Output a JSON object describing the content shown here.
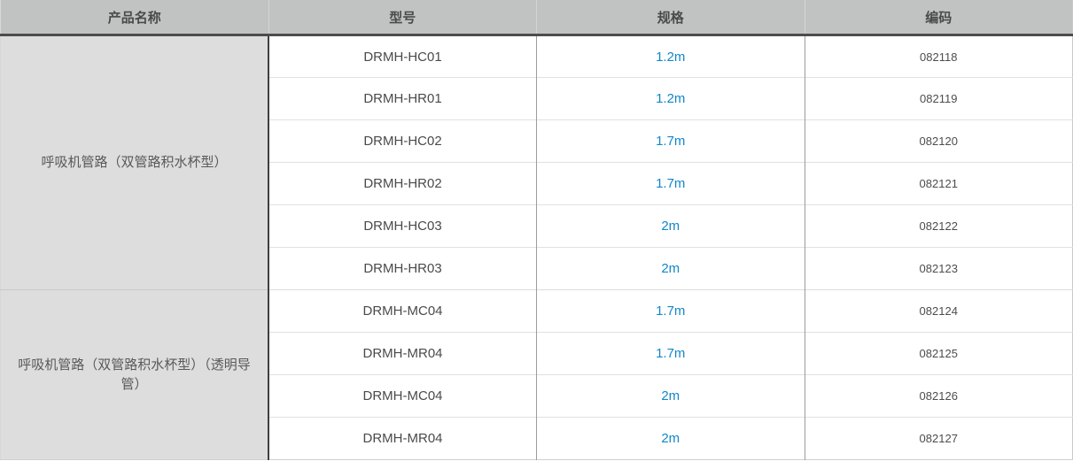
{
  "table": {
    "columns": [
      "产品名称",
      "型号",
      "规格",
      "编码"
    ],
    "groups": [
      {
        "product_name": "呼吸机管路（双管路积水杯型）",
        "rows": [
          {
            "model": "DRMH-HC01",
            "spec": "1.2m",
            "code": "082118"
          },
          {
            "model": "DRMH-HR01",
            "spec": "1.2m",
            "code": "082119"
          },
          {
            "model": "DRMH-HC02",
            "spec": "1.7m",
            "code": "082120"
          },
          {
            "model": "DRMH-HR02",
            "spec": "1.7m",
            "code": "082121"
          },
          {
            "model": "DRMH-HC03",
            "spec": "2m",
            "code": "082122"
          },
          {
            "model": "DRMH-HR03",
            "spec": "2m",
            "code": "082123"
          }
        ]
      },
      {
        "product_name": "呼吸机管路（双管路积水杯型）（透明导管）",
        "rows": [
          {
            "model": "DRMH-MC04",
            "spec": "1.7m",
            "code": "082124"
          },
          {
            "model": "DRMH-MR04",
            "spec": "1.7m",
            "code": "082125"
          },
          {
            "model": "DRMH-MC04",
            "spec": "2m",
            "code": "082126"
          },
          {
            "model": "DRMH-MR04",
            "spec": "2m",
            "code": "082127"
          }
        ]
      }
    ]
  },
  "colors": {
    "spec_blue": "#1287c9",
    "header_bg": "#c1c3c3",
    "group_cell_bg": "#dddddd",
    "header_border": "#4d4d4d"
  }
}
